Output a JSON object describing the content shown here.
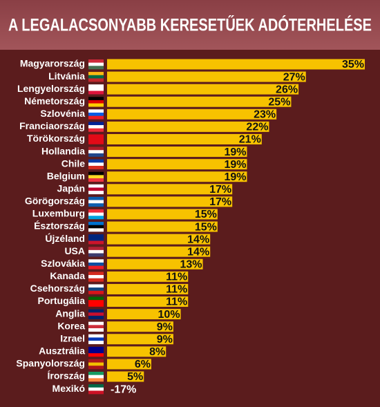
{
  "chart_data": {
    "type": "bar",
    "orientation": "horizontal",
    "title": "A LEGALACSONYABB KERESETŰEK ADÓTERHELÉSE",
    "categories": [
      "Magyarország",
      "Litvánia",
      "Lengyelország",
      "Németország",
      "Szlovénia",
      "Franciaország",
      "Törökország",
      "Hollandia",
      "Chile",
      "Belgium",
      "Japán",
      "Görögország",
      "Luxemburg",
      "Észtország",
      "Újzéland",
      "USA",
      "Szlovákia",
      "Kanada",
      "Csehország",
      "Portugália",
      "Anglia",
      "Korea",
      "Izrael",
      "Ausztrália",
      "Spanyolország",
      "Írország",
      "Mexikó"
    ],
    "values": [
      35,
      27,
      26,
      25,
      23,
      22,
      21,
      19,
      19,
      19,
      17,
      17,
      15,
      15,
      14,
      14,
      13,
      11,
      11,
      11,
      10,
      9,
      9,
      8,
      6,
      5,
      -17
    ],
    "value_labels": [
      "35%",
      "27%",
      "26%",
      "25%",
      "23%",
      "22%",
      "21%",
      "19%",
      "19%",
      "19%",
      "17%",
      "17%",
      "15%",
      "15%",
      "14%",
      "14%",
      "13%",
      "11%",
      "11%",
      "11%",
      "10%",
      "9%",
      "9%",
      "8%",
      "6%",
      "5%",
      "-17%"
    ],
    "color": "#f7c200",
    "xlim": [
      0,
      35
    ]
  }
}
